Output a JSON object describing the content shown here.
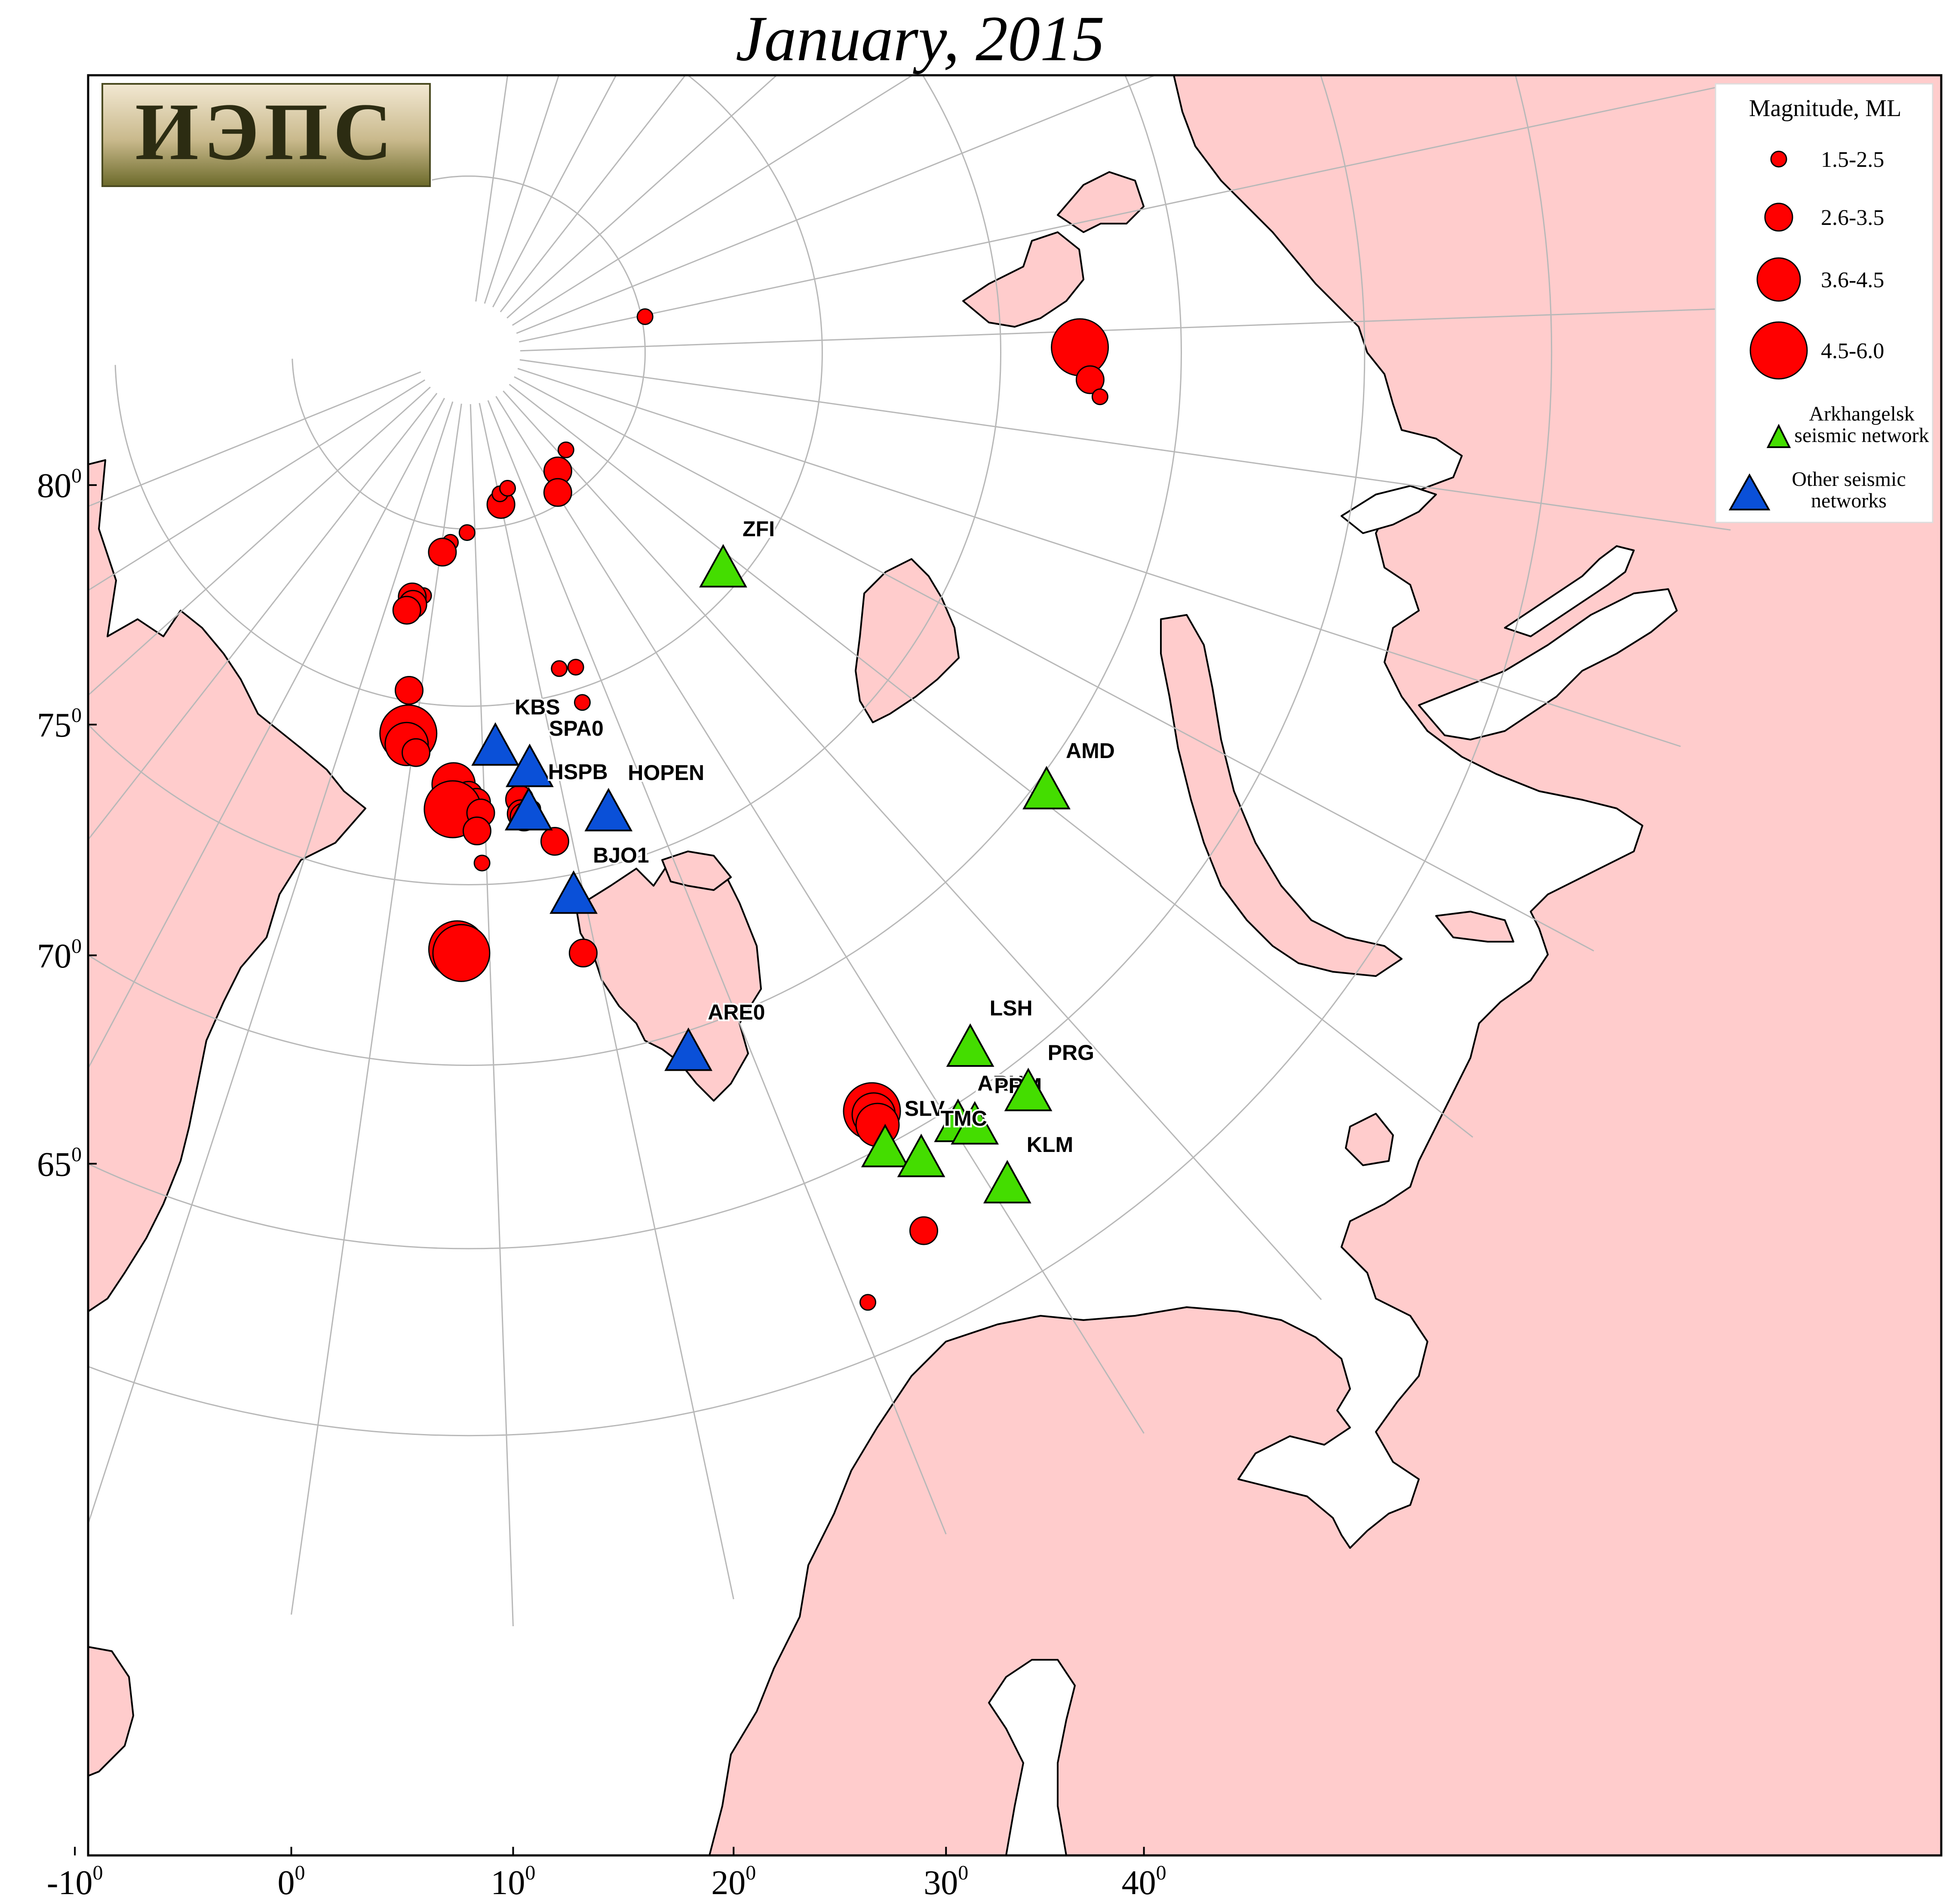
{
  "title": "January, 2015",
  "logo_text": "ИЭПС",
  "colors": {
    "land": "#ffcccc",
    "sea": "#ffffff",
    "coast": "#000000",
    "grid": "#bdbdbd",
    "event": "#ff0000",
    "arkhangelsk_station": "#44dd00",
    "other_station": "#0a50d8"
  },
  "axes": {
    "lat_labels": [
      {
        "lat": 80,
        "text": "80"
      },
      {
        "lat": 75,
        "text": "75"
      },
      {
        "lat": 70,
        "text": "70"
      },
      {
        "lat": 65,
        "text": "65"
      }
    ],
    "lon_labels": [
      {
        "lon": -10,
        "text": "-10"
      },
      {
        "lon": 0,
        "text": "0"
      },
      {
        "lon": 10,
        "text": "10"
      },
      {
        "lon": 20,
        "text": "20"
      },
      {
        "lon": 30,
        "text": "30"
      },
      {
        "lon": 40,
        "text": "40"
      }
    ],
    "degree_sign": "0"
  },
  "legend": {
    "title": "Magnitude, ML",
    "magnitude_classes": [
      {
        "label": "1.5-2.5",
        "class": 1
      },
      {
        "label": "2.6-3.5",
        "class": 2
      },
      {
        "label": "3.6-4.5",
        "class": 3
      },
      {
        "label": "4.5-6.0",
        "class": 4
      }
    ],
    "arkhangelsk_label_line1": "Arkhangelsk",
    "arkhangelsk_label_line2": "seismic network",
    "other_label_line1": "Other seismic",
    "other_label_line2": "networks"
  },
  "stations": [
    {
      "code": "ZFI",
      "network": "arkhangelsk",
      "lat": 80.6,
      "lon": 58.0
    },
    {
      "code": "AMD",
      "network": "arkhangelsk",
      "lat": 69.7,
      "lon": 61.0
    },
    {
      "code": "LSH",
      "network": "arkhangelsk",
      "lat": 66.1,
      "lon": 43.9
    },
    {
      "code": "ARH",
      "network": "arkhangelsk",
      "lat": 64.6,
      "lon": 40.5
    },
    {
      "code": "PRM",
      "network": "arkhangelsk",
      "lat": 64.3,
      "lon": 41.3
    },
    {
      "code": "PRG",
      "network": "arkhangelsk",
      "lat": 64.2,
      "lon": 45.2
    },
    {
      "code": "SLV",
      "network": "arkhangelsk",
      "lat": 65.0,
      "lon": 35.7
    },
    {
      "code": "TMC",
      "network": "arkhangelsk",
      "lat": 64.3,
      "lon": 37.4
    },
    {
      "code": "KLM",
      "network": "arkhangelsk",
      "lat": 62.5,
      "lon": 41.0
    },
    {
      "code": "KBS",
      "network": "other",
      "lat": 78.9,
      "lon": 11.9
    },
    {
      "code": "SPA0",
      "network": "other",
      "lat": 78.2,
      "lon": 16.4
    },
    {
      "code": "HSPB",
      "network": "other",
      "lat": 77.0,
      "lon": 15.5
    },
    {
      "code": "HOPEN",
      "network": "other",
      "lat": 76.5,
      "lon": 25.0
    },
    {
      "code": "BJO1",
      "network": "other",
      "lat": 74.5,
      "lon": 19.0
    },
    {
      "code": "ARE0",
      "network": "other",
      "lat": 69.5,
      "lon": 25.5
    }
  ],
  "events": [
    {
      "lat": 84.9,
      "lon": 109.5,
      "class": 1
    },
    {
      "lat": 85.8,
      "lon": 45.0,
      "class": 2
    },
    {
      "lat": 86.1,
      "lon": 53.0,
      "class": 1
    },
    {
      "lat": 85.3,
      "lon": 40.5,
      "class": 2
    },
    {
      "lat": 85.6,
      "lon": 20.0,
      "class": 2
    },
    {
      "lat": 85.9,
      "lon": 20.5,
      "class": 1
    },
    {
      "lat": 86.0,
      "lon": 24.0,
      "class": 1
    },
    {
      "lat": 84.9,
      "lon": 7.5,
      "class": 1
    },
    {
      "lat": 84.6,
      "lon": 2.5,
      "class": 1
    },
    {
      "lat": 84.3,
      "lon": 0.5,
      "class": 2
    },
    {
      "lat": 83.0,
      "lon": -2.5,
      "class": 1
    },
    {
      "lat": 82.9,
      "lon": -5.0,
      "class": 2
    },
    {
      "lat": 82.7,
      "lon": -4.5,
      "class": 2
    },
    {
      "lat": 82.5,
      "lon": -5.5,
      "class": 2
    },
    {
      "lat": 80.7,
      "lon": 24.0,
      "class": 1
    },
    {
      "lat": 80.6,
      "lon": 26.8,
      "class": 1
    },
    {
      "lat": 79.6,
      "lon": 26.0,
      "class": 1
    },
    {
      "lat": 80.3,
      "lon": -2.0,
      "class": 2
    },
    {
      "lat": 79.1,
      "lon": -1.0,
      "class": 4
    },
    {
      "lat": 78.8,
      "lon": -1.0,
      "class": 3
    },
    {
      "lat": 78.6,
      "lon": 0.5,
      "class": 2
    },
    {
      "lat": 77.8,
      "lon": 6.0,
      "class": 3
    },
    {
      "lat": 77.5,
      "lon": 8.0,
      "class": 2
    },
    {
      "lat": 77.3,
      "lon": 9.0,
      "class": 2
    },
    {
      "lat": 77.1,
      "lon": 6.0,
      "class": 4
    },
    {
      "lat": 77.0,
      "lon": 9.5,
      "class": 2
    },
    {
      "lat": 76.5,
      "lon": 9.0,
      "class": 2
    },
    {
      "lat": 77.3,
      "lon": 14.5,
      "class": 2
    },
    {
      "lat": 77.0,
      "lon": 16.0,
      "class": 1
    },
    {
      "lat": 76.9,
      "lon": 14.5,
      "class": 2
    },
    {
      "lat": 76.8,
      "lon": 14.8,
      "class": 2
    },
    {
      "lat": 76.0,
      "lon": 18.0,
      "class": 2
    },
    {
      "lat": 75.6,
      "lon": 9.5,
      "class": 1
    },
    {
      "lat": 73.2,
      "lon": 6.9,
      "class": 4
    },
    {
      "lat": 73.1,
      "lon": 7.3,
      "class": 4
    },
    {
      "lat": 72.8,
      "lon": 18.8,
      "class": 2
    },
    {
      "lat": 72.8,
      "lon": 98.5,
      "class": 4
    },
    {
      "lat": 72.5,
      "lon": 95.5,
      "class": 2
    },
    {
      "lat": 72.2,
      "lon": 94.0,
      "class": 1
    },
    {
      "lat": 66.0,
      "lon": 36.0,
      "class": 4
    },
    {
      "lat": 65.9,
      "lon": 36.0,
      "class": 3
    },
    {
      "lat": 65.6,
      "lon": 35.9,
      "class": 3
    },
    {
      "lat": 61.4,
      "lon": 30.8,
      "class": 1
    },
    {
      "lat": 62.5,
      "lon": 35.4,
      "class": 2
    }
  ]
}
